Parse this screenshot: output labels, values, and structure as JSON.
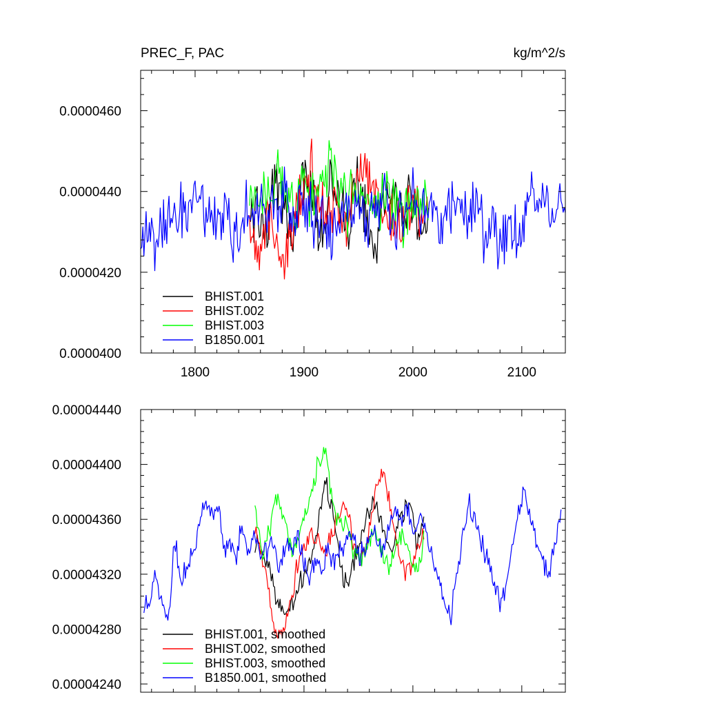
{
  "chart_data": [
    {
      "type": "line",
      "title": "PREC_F, PAC",
      "units": "kg/m^2/s",
      "xlim": [
        1750,
        2140
      ],
      "ylim": [
        4e-05,
        4.7e-05
      ],
      "xticks": [
        1800,
        1900,
        2000,
        2100
      ],
      "xtick_labels": [
        "1800",
        "1900",
        "2000",
        "2100"
      ],
      "yticks": [
        4e-05,
        4.2e-05,
        4.4e-05,
        4.6e-05
      ],
      "ytick_labels": [
        "0.0000400",
        "0.0000420",
        "0.0000440",
        "0.0000460"
      ],
      "legend_position": "bottom-left",
      "series": [
        {
          "name": "BHIST.001",
          "color": "#000000",
          "x_start": 1850,
          "x_end": 2014,
          "anchors": [
            4.33e-05,
            4.36e-05,
            4.3e-05,
            4.44e-05,
            4.35e-05,
            4.28e-05,
            4.45e-05,
            4.38e-05,
            4.26e-05,
            4.44e-05,
            4.4e-05,
            4.27e-05,
            4.45e-05,
            4.36e-05,
            4.25e-05,
            4.42e-05,
            4.38e-05,
            4.32e-05,
            4.4e-05,
            4.29e-05,
            4.33e-05
          ]
        },
        {
          "name": "BHIST.002",
          "color": "#ff0000",
          "x_start": 1850,
          "x_end": 2014,
          "anchors": [
            4.31e-05,
            4.28e-05,
            4.33e-05,
            4.27e-05,
            4.24e-05,
            4.31e-05,
            4.4e-05,
            4.45e-05,
            4.38e-05,
            4.36e-05,
            4.34e-05,
            4.32e-05,
            4.4e-05,
            4.47e-05,
            4.41e-05,
            4.36e-05,
            4.33e-05,
            4.3e-05,
            4.38e-05,
            4.36e-05,
            4.34e-05
          ]
        },
        {
          "name": "BHIST.003",
          "color": "#00ff00",
          "x_start": 1850,
          "x_end": 2014,
          "anchors": [
            4.39e-05,
            4.36e-05,
            4.41e-05,
            4.44e-05,
            4.4e-05,
            4.37e-05,
            4.43e-05,
            4.38e-05,
            4.41e-05,
            4.46e-05,
            4.42e-05,
            4.36e-05,
            4.4e-05,
            4.37e-05,
            4.33e-05,
            4.41e-05,
            4.38e-05,
            4.32e-05,
            4.36e-05,
            4.37e-05,
            4.35e-05
          ]
        },
        {
          "name": "B1850.001",
          "color": "#0000ff",
          "x_start": 1750,
          "x_end": 2140,
          "anchors": [
            4.25e-05,
            4.31e-05,
            4.27e-05,
            4.29e-05,
            4.34e-05,
            4.33e-05,
            4.37e-05,
            4.34e-05,
            4.39e-05,
            4.38e-05,
            4.33e-05,
            4.36e-05,
            4.32e-05,
            4.35e-05,
            4.28e-05,
            4.3e-05,
            4.37e-05,
            4.34e-05,
            4.38e-05,
            4.34e-05,
            4.38e-05,
            4.36e-05,
            4.42e-05,
            4.33e-05,
            4.38e-05,
            4.36e-05,
            4.34e-05,
            4.33e-05,
            4.31e-05,
            4.27e-05,
            4.34e-05,
            4.36e-05,
            4.32e-05,
            4.4e-05,
            4.31e-05,
            4.36e-05,
            4.35e-05,
            4.41e-05,
            4.31e-05,
            4.34e-05,
            4.32e-05,
            4.41e-05,
            4.35e-05,
            4.34e-05,
            4.37e-05,
            4.32e-05,
            4.33e-05,
            4.39e-05,
            4.36e-05,
            4.32e-05,
            4.37e-05,
            4.33e-05,
            4.29e-05,
            4.36e-05,
            4.26e-05,
            4.31e-05,
            4.32e-05,
            4.29e-05,
            4.37e-05,
            4.41e-05,
            4.35e-05,
            4.38e-05,
            4.31e-05,
            4.36e-05,
            4.34e-05
          ]
        }
      ]
    },
    {
      "type": "line",
      "xlim": [
        1750,
        2140
      ],
      "ylim": [
        4.234e-05,
        4.44e-05
      ],
      "yticks": [
        4.24e-05,
        4.28e-05,
        4.32e-05,
        4.36e-05,
        4.4e-05,
        4.44e-05
      ],
      "ytick_labels": [
        "0.00004240",
        "0.00004280",
        "0.00004320",
        "0.00004360",
        "0.00004400",
        "0.00004440"
      ],
      "legend_position": "bottom-left",
      "series": [
        {
          "name": "BHIST.001, smoothed",
          "color": "#000000",
          "x_start": 1855,
          "x_end": 2010,
          "anchors": [
            4.345e-05,
            4.335e-05,
            4.33e-05,
            4.305e-05,
            4.29e-05,
            4.295e-05,
            4.31e-05,
            4.318e-05,
            4.335e-05,
            4.36e-05,
            4.385e-05,
            4.37e-05,
            4.33e-05,
            4.31e-05,
            4.325e-05,
            4.345e-05,
            4.365e-05,
            4.372e-05,
            4.355e-05,
            4.34e-05,
            4.35e-05,
            4.365e-05,
            4.372e-05,
            4.34e-05,
            4.365e-05
          ]
        },
        {
          "name": "BHIST.002, smoothed",
          "color": "#ff0000",
          "x_start": 1855,
          "x_end": 2010,
          "anchors": [
            4.355e-05,
            4.33e-05,
            4.305e-05,
            4.28e-05,
            4.28e-05,
            4.3e-05,
            4.325e-05,
            4.342e-05,
            4.35e-05,
            4.345e-05,
            4.335e-05,
            4.348e-05,
            4.365e-05,
            4.372e-05,
            4.345e-05,
            4.325e-05,
            4.348e-05,
            4.375e-05,
            4.395e-05,
            4.38e-05,
            4.345e-05,
            4.325e-05,
            4.32e-05,
            4.34e-05,
            4.352e-05
          ]
        },
        {
          "name": "BHIST.003, smoothed",
          "color": "#00ff00",
          "x_start": 1855,
          "x_end": 2010,
          "anchors": [
            4.372e-05,
            4.335e-05,
            4.35e-05,
            4.375e-05,
            4.365e-05,
            4.34e-05,
            4.342e-05,
            4.36e-05,
            4.378e-05,
            4.4e-05,
            4.41e-05,
            4.375e-05,
            4.352e-05,
            4.36e-05,
            4.335e-05,
            4.33e-05,
            4.342e-05,
            4.352e-05,
            4.335e-05,
            4.325e-05,
            4.34e-05,
            4.352e-05,
            4.33e-05,
            4.325e-05,
            4.342e-05
          ]
        },
        {
          "name": "B1850.001, smoothed",
          "color": "#0000ff",
          "x_start": 1753,
          "x_end": 2136,
          "anchors": [
            4.3e-05,
            4.295e-05,
            4.325e-05,
            4.295e-05,
            4.29e-05,
            4.345e-05,
            4.318e-05,
            4.322e-05,
            4.338e-05,
            4.355e-05,
            4.378e-05,
            4.362e-05,
            4.37e-05,
            4.342e-05,
            4.34e-05,
            4.332e-05,
            4.358e-05,
            4.332e-05,
            4.35e-05,
            4.332e-05,
            4.338e-05,
            4.342e-05,
            4.325e-05,
            4.34e-05,
            4.335e-05,
            4.352e-05,
            4.328e-05,
            4.318e-05,
            4.33e-05,
            4.325e-05,
            4.338e-05,
            4.33e-05,
            4.338e-05,
            4.345e-05,
            4.35e-05,
            4.332e-05,
            4.34e-05,
            4.352e-05,
            4.345e-05,
            4.335e-05,
            4.352e-05,
            4.37e-05,
            4.362e-05,
            4.372e-05,
            4.35e-05,
            4.36e-05,
            4.35e-05,
            4.33e-05,
            4.318e-05,
            4.3e-05,
            4.29e-05,
            4.315e-05,
            4.35e-05,
            4.37e-05,
            4.362e-05,
            4.342e-05,
            4.33e-05,
            4.315e-05,
            4.3e-05,
            4.31e-05,
            4.335e-05,
            4.362e-05,
            4.385e-05,
            4.36e-05,
            4.342e-05,
            4.33e-05,
            4.32e-05,
            4.345e-05,
            4.365e-05
          ]
        }
      ]
    }
  ]
}
